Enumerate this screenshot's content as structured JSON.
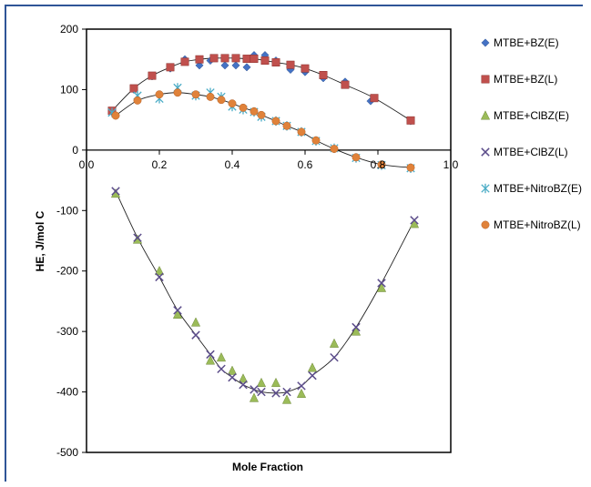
{
  "chart_data": {
    "type": "scatter",
    "title": "",
    "xlabel": "Mole Fraction",
    "ylabel": "HE, J/mol C",
    "xlim": [
      0,
      1.0
    ],
    "ylim": [
      -500,
      200
    ],
    "x_ticks": [
      "0.0",
      "0.2",
      "0.4",
      "0.6",
      "0.8",
      "1.0"
    ],
    "y_ticks": [
      "200",
      "100",
      "0",
      "-100",
      "-200",
      "-300",
      "-400",
      "-500"
    ],
    "grid": false,
    "legend_position": "right",
    "series": [
      {
        "name": "MTBE+BZ(E)",
        "marker": "diamond",
        "color": "#4472c4",
        "points": [
          [
            0.07,
            63
          ],
          [
            0.13,
            100
          ],
          [
            0.18,
            122
          ],
          [
            0.23,
            135
          ],
          [
            0.27,
            150
          ],
          [
            0.31,
            140
          ],
          [
            0.34,
            148
          ],
          [
            0.38,
            140
          ],
          [
            0.41,
            140
          ],
          [
            0.44,
            137
          ],
          [
            0.46,
            157
          ],
          [
            0.49,
            157
          ],
          [
            0.52,
            148
          ],
          [
            0.56,
            133
          ],
          [
            0.6,
            129
          ],
          [
            0.65,
            119
          ],
          [
            0.71,
            113
          ],
          [
            0.78,
            81
          ],
          [
            0.89,
            48
          ]
        ]
      },
      {
        "name": "MTBE+BZ(L)",
        "marker": "square",
        "color": "#c0504d",
        "points": [
          [
            0.07,
            65
          ],
          [
            0.13,
            102
          ],
          [
            0.18,
            123
          ],
          [
            0.23,
            137
          ],
          [
            0.27,
            146
          ],
          [
            0.31,
            150
          ],
          [
            0.35,
            152
          ],
          [
            0.38,
            152
          ],
          [
            0.41,
            152
          ],
          [
            0.44,
            151
          ],
          [
            0.46,
            151
          ],
          [
            0.49,
            148
          ],
          [
            0.52,
            145
          ],
          [
            0.56,
            141
          ],
          [
            0.6,
            135
          ],
          [
            0.65,
            124
          ],
          [
            0.71,
            108
          ],
          [
            0.79,
            86
          ],
          [
            0.89,
            49
          ]
        ]
      },
      {
        "name": "MTBE+ClBZ(E)",
        "marker": "triangle",
        "color": "#9bbb59",
        "points": [
          [
            0.08,
            -72
          ],
          [
            0.14,
            -148
          ],
          [
            0.2,
            -200
          ],
          [
            0.25,
            -272
          ],
          [
            0.3,
            -285
          ],
          [
            0.34,
            -348
          ],
          [
            0.37,
            -343
          ],
          [
            0.4,
            -365
          ],
          [
            0.43,
            -378
          ],
          [
            0.46,
            -410
          ],
          [
            0.48,
            -385
          ],
          [
            0.52,
            -385
          ],
          [
            0.55,
            -413
          ],
          [
            0.59,
            -403
          ],
          [
            0.62,
            -360
          ],
          [
            0.68,
            -320
          ],
          [
            0.74,
            -300
          ],
          [
            0.81,
            -228
          ],
          [
            0.9,
            -122
          ]
        ]
      },
      {
        "name": "MTBE+ClBZ(L)",
        "marker": "x",
        "color": "#5b4c8a",
        "points": [
          [
            0.08,
            -68
          ],
          [
            0.14,
            -145
          ],
          [
            0.2,
            -210
          ],
          [
            0.25,
            -265
          ],
          [
            0.3,
            -306
          ],
          [
            0.34,
            -338
          ],
          [
            0.37,
            -362
          ],
          [
            0.4,
            -376
          ],
          [
            0.43,
            -388
          ],
          [
            0.46,
            -396
          ],
          [
            0.48,
            -400
          ],
          [
            0.52,
            -402
          ],
          [
            0.55,
            -400
          ],
          [
            0.59,
            -390
          ],
          [
            0.62,
            -373
          ],
          [
            0.68,
            -343
          ],
          [
            0.74,
            -293
          ],
          [
            0.81,
            -220
          ],
          [
            0.9,
            -116
          ]
        ]
      },
      {
        "name": "MTBE+NitroBZ(E)",
        "marker": "star",
        "color": "#4bacc6",
        "points": [
          [
            0.07,
            62
          ],
          [
            0.14,
            90
          ],
          [
            0.2,
            85
          ],
          [
            0.25,
            103
          ],
          [
            0.3,
            90
          ],
          [
            0.34,
            95
          ],
          [
            0.37,
            88
          ],
          [
            0.4,
            72
          ],
          [
            0.43,
            67
          ],
          [
            0.46,
            63
          ],
          [
            0.48,
            55
          ],
          [
            0.52,
            48
          ],
          [
            0.55,
            40
          ],
          [
            0.59,
            30
          ],
          [
            0.63,
            15
          ],
          [
            0.68,
            3
          ],
          [
            0.74,
            -13
          ],
          [
            0.81,
            -25
          ],
          [
            0.89,
            -30
          ]
        ]
      },
      {
        "name": "MTBE+NitroBZ(L)",
        "marker": "circle",
        "color": "#e0823a",
        "points": [
          [
            0.08,
            57
          ],
          [
            0.14,
            82
          ],
          [
            0.2,
            92
          ],
          [
            0.25,
            95
          ],
          [
            0.3,
            92
          ],
          [
            0.34,
            88
          ],
          [
            0.37,
            83
          ],
          [
            0.4,
            77
          ],
          [
            0.43,
            70
          ],
          [
            0.46,
            64
          ],
          [
            0.48,
            58
          ],
          [
            0.52,
            48
          ],
          [
            0.55,
            40
          ],
          [
            0.59,
            30
          ],
          [
            0.63,
            16
          ],
          [
            0.68,
            2
          ],
          [
            0.74,
            -12
          ],
          [
            0.81,
            -24
          ],
          [
            0.89,
            -29
          ]
        ]
      }
    ]
  }
}
